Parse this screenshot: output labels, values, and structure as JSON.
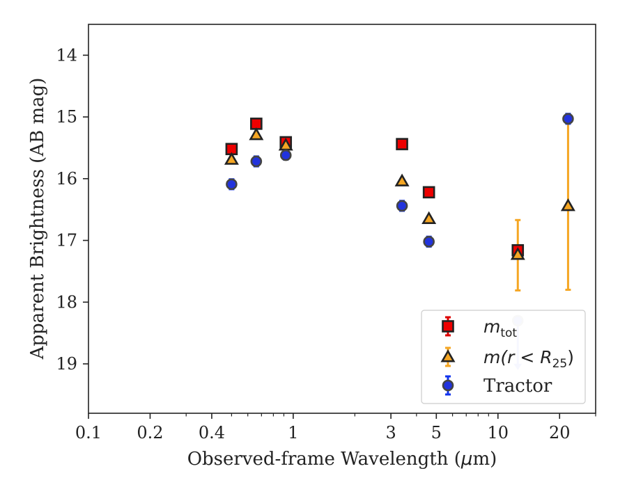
{
  "chart_data": {
    "type": "scatter",
    "xscale": "log",
    "xlim": [
      0.1,
      30
    ],
    "ylim": [
      19.8,
      13.5
    ],
    "yinverted": true,
    "xlabel_pre": "Observed-frame Wavelength (",
    "xlabel_mu": "μ",
    "xlabel_post": "m)",
    "ylabel": "Apparent Brightness (AB mag)",
    "xticks": [
      {
        "value": 0.1,
        "label": "0.1"
      },
      {
        "value": 0.2,
        "label": "0.2"
      },
      {
        "value": 0.4,
        "label": "0.4"
      },
      {
        "value": 1,
        "label": "1"
      },
      {
        "value": 3,
        "label": "3"
      },
      {
        "value": 5,
        "label": "5"
      },
      {
        "value": 10,
        "label": "10"
      },
      {
        "value": 20,
        "label": "20"
      }
    ],
    "yticks": [
      {
        "value": 14,
        "label": "14"
      },
      {
        "value": 15,
        "label": "15"
      },
      {
        "value": 16,
        "label": "16"
      },
      {
        "value": 17,
        "label": "17"
      },
      {
        "value": 18,
        "label": "18"
      },
      {
        "value": 19,
        "label": "19"
      }
    ],
    "grid": false,
    "legend_position": "lower-right",
    "series": [
      {
        "key": "mtot",
        "marker": "square",
        "color": "#ee0000",
        "edge": "#222222",
        "errcolor": "#dd0000",
        "points": [
          {
            "x": 0.5,
            "y": 15.52,
            "err": 0.06
          },
          {
            "x": 0.66,
            "y": 15.11,
            "err": 0.06
          },
          {
            "x": 0.92,
            "y": 15.41,
            "err": 0.06
          },
          {
            "x": 3.4,
            "y": 15.44,
            "err": 0.06
          },
          {
            "x": 4.6,
            "y": 16.22,
            "err": 0.06
          },
          {
            "x": 12.5,
            "y": 17.16,
            "err": 0.06
          }
        ]
      },
      {
        "key": "mr25",
        "marker": "triangle",
        "color": "#f5a623",
        "edge": "#222222",
        "errcolor": "#f5a623",
        "points": [
          {
            "x": 0.5,
            "y": 15.69,
            "err": 0.03
          },
          {
            "x": 0.66,
            "y": 15.29,
            "err": 0.03
          },
          {
            "x": 0.92,
            "y": 15.46,
            "err": 0.03
          },
          {
            "x": 3.4,
            "y": 16.04,
            "err": 0.03
          },
          {
            "x": 4.6,
            "y": 16.65,
            "err": 0.03
          },
          {
            "x": 12.5,
            "y": 17.23,
            "err_low": 0.56,
            "err_high": 0.58
          },
          {
            "x": 22,
            "y": 16.44,
            "err_low": 1.48,
            "err_high": 1.36
          }
        ]
      },
      {
        "key": "tractor",
        "marker": "circle",
        "color": "#2233dd",
        "edge": "#444444",
        "errcolor": "#1133ee",
        "points": [
          {
            "x": 0.5,
            "y": 16.09,
            "err": 0.08
          },
          {
            "x": 0.66,
            "y": 15.72,
            "err": 0.08
          },
          {
            "x": 0.92,
            "y": 15.62,
            "err": 0.07
          },
          {
            "x": 3.4,
            "y": 16.44,
            "err": 0.08
          },
          {
            "x": 4.6,
            "y": 17.02,
            "err": 0.08
          },
          {
            "x": 22,
            "y": 15.03,
            "err": 0.08
          }
        ],
        "upper_limits": [
          {
            "x": 12.5,
            "y": 18.3,
            "arrow_to": 19.1
          }
        ]
      }
    ],
    "legend": [
      {
        "series": "mtot",
        "label_main": "m",
        "label_sub": "tot"
      },
      {
        "series": "mr25",
        "label_main": "m(r < R",
        "label_sub": "25",
        "label_end": ")"
      },
      {
        "series": "tractor",
        "label_plain": "Tractor"
      }
    ]
  }
}
